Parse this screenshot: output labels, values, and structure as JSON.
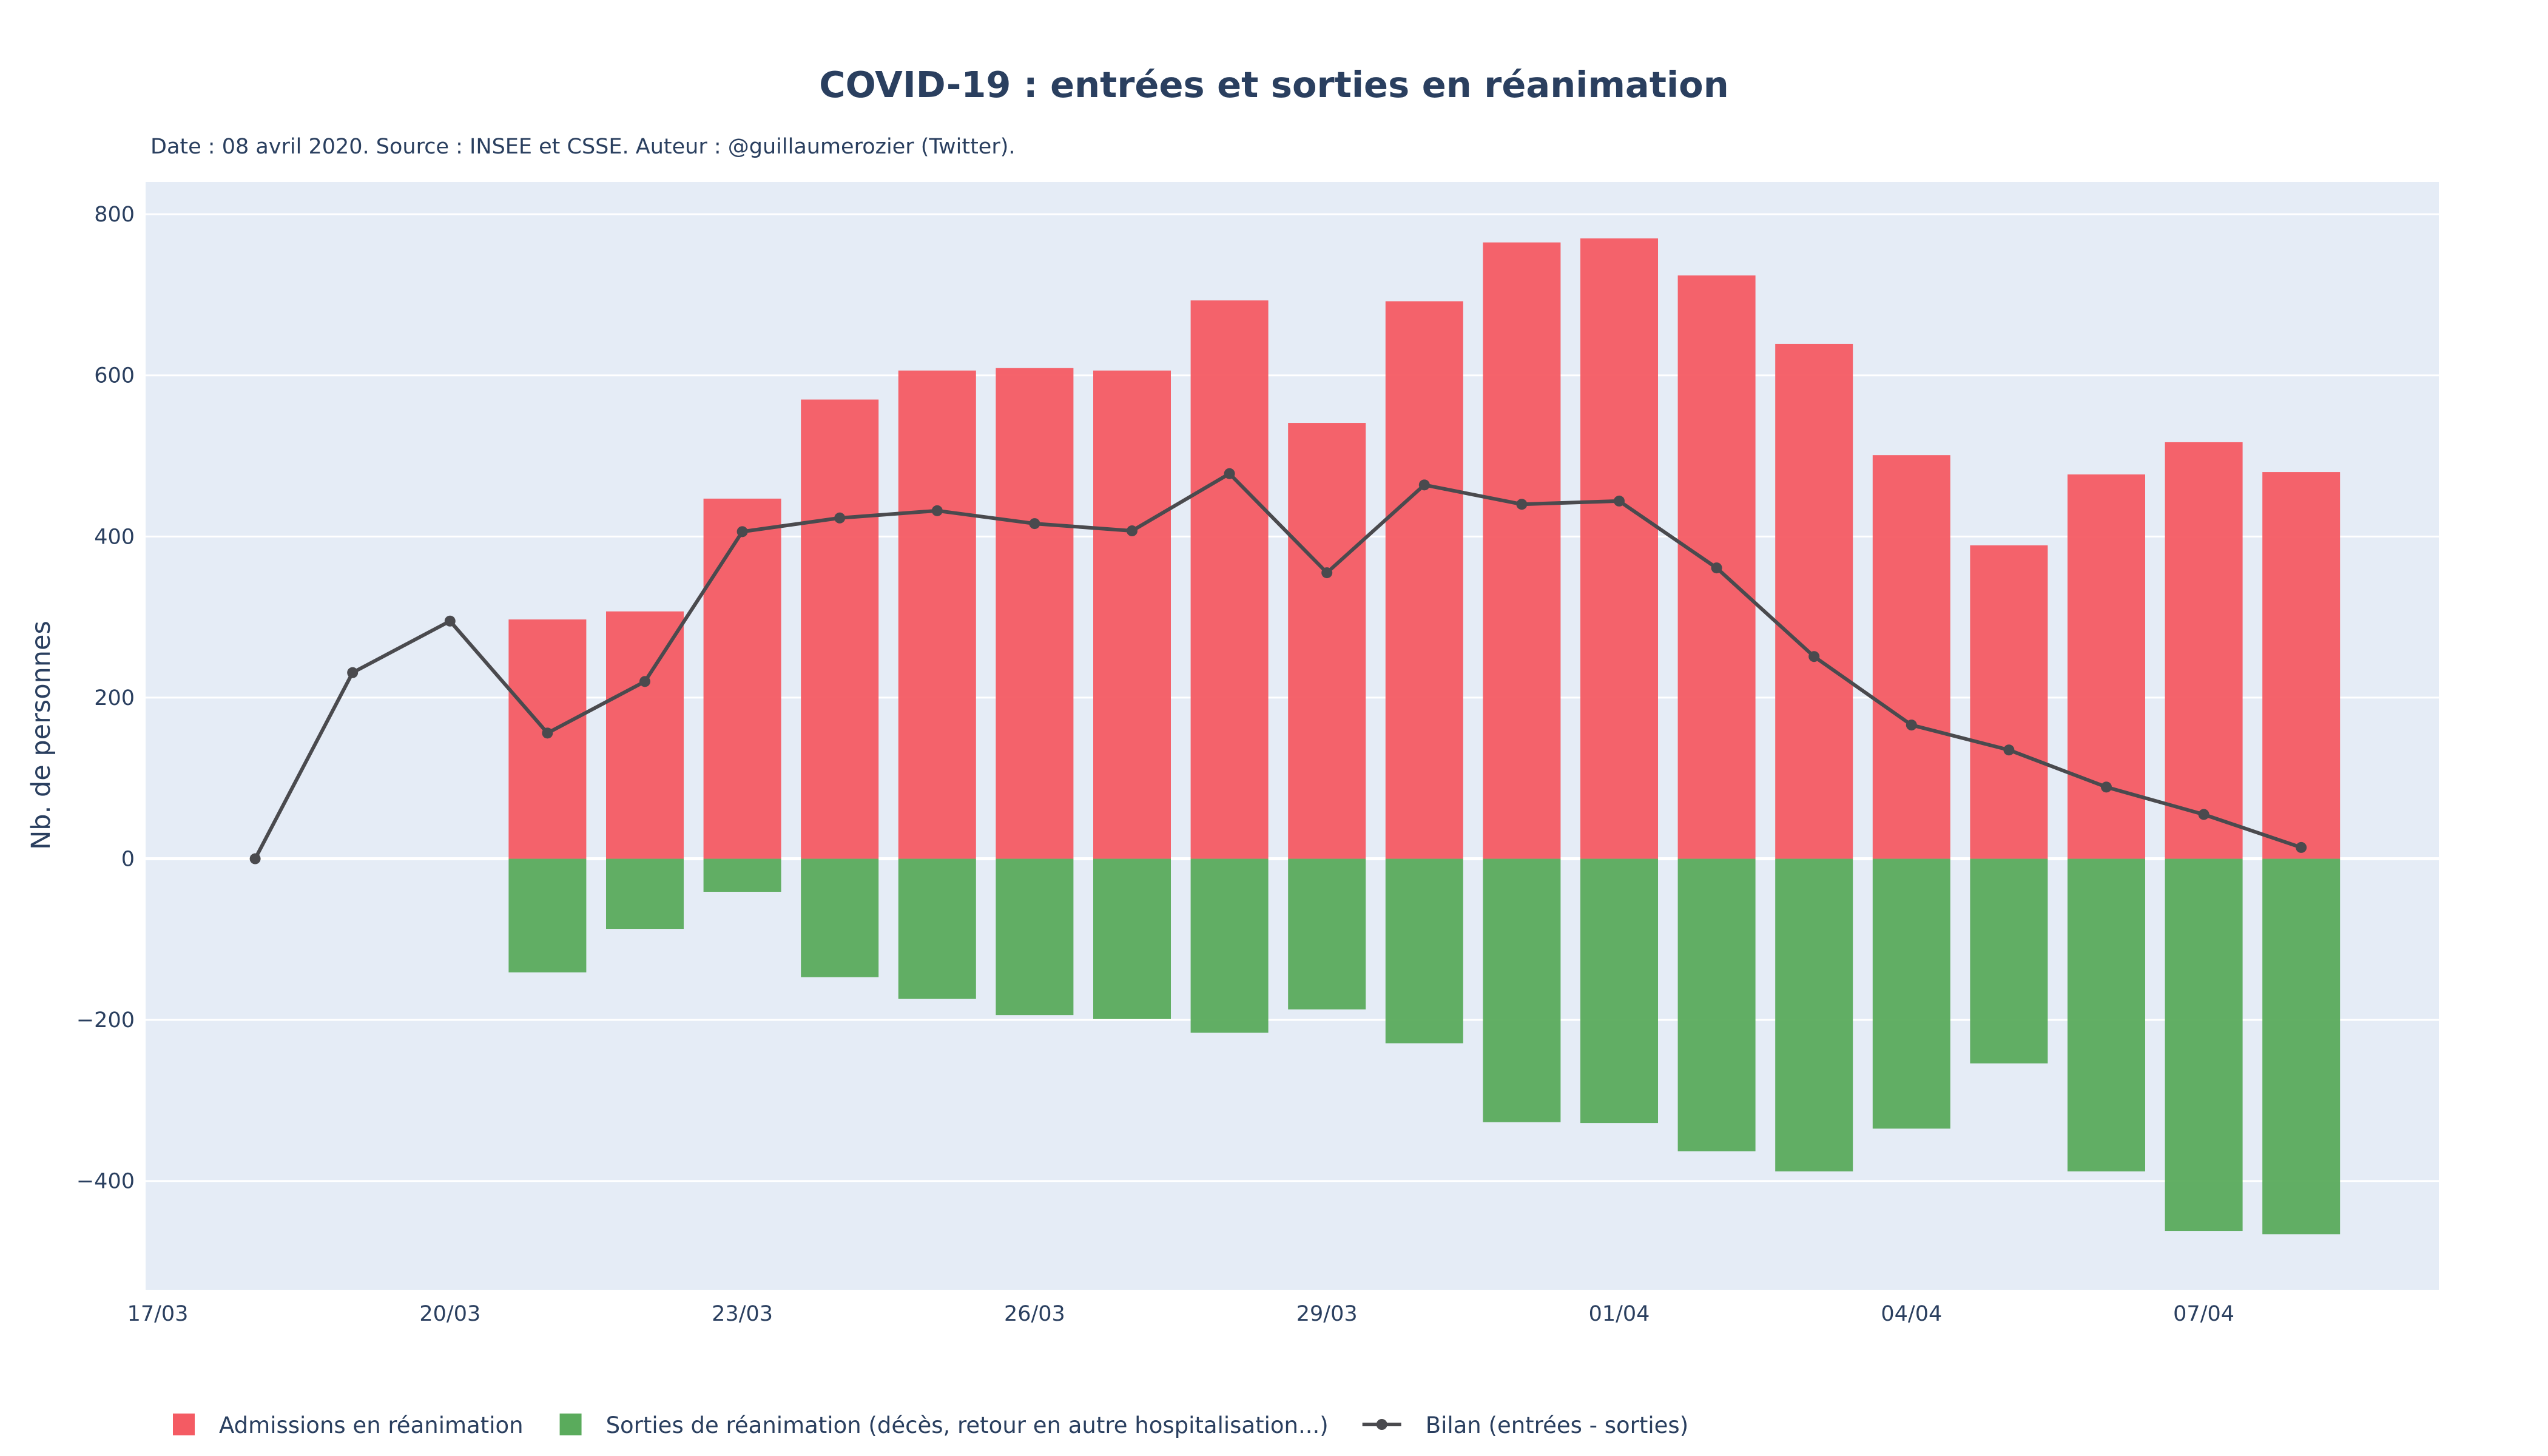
{
  "chart_data": {
    "type": "bar",
    "title": "COVID-19 : entrées et sorties en réanimation",
    "subtitle": "Date : 08 avril 2020. Source : INSEE et CSSE. Auteur : @guillaumerozier (Twitter).",
    "xlabel": "",
    "ylabel": "Nb. de personnes",
    "ylim": [
      -535,
      840
    ],
    "yticks": [
      800,
      600,
      400,
      200,
      0,
      -200,
      -400
    ],
    "ytick_labels": [
      "800",
      "600",
      "400",
      "200",
      "0",
      "−200",
      "−400"
    ],
    "xticks": [
      "17/03",
      "20/03",
      "23/03",
      "26/03",
      "29/03",
      "01/04",
      "04/04",
      "07/04"
    ],
    "grid": true,
    "barmode": "relative",
    "legend_position": "bottom-left",
    "background_color": "#e5ecf6",
    "categories": [
      "18/03",
      "19/03",
      "20/03",
      "21/03",
      "22/03",
      "23/03",
      "24/03",
      "25/03",
      "26/03",
      "27/03",
      "28/03",
      "29/03",
      "30/03",
      "31/03",
      "01/04",
      "02/04",
      "03/04",
      "04/04",
      "05/04",
      "06/04",
      "07/04",
      "08/04"
    ],
    "series": [
      {
        "name": "Admissions en réanimation",
        "kind": "bar",
        "color": "#f45b63",
        "values": [
          null,
          null,
          null,
          297,
          307,
          447,
          570,
          606,
          609,
          606,
          693,
          541,
          692,
          765,
          770,
          724,
          639,
          501,
          389,
          477,
          517,
          480
        ]
      },
      {
        "name": "Sorties de réanimation (décès, retour en autre hospitalisation...)",
        "kind": "bar",
        "color": "#5aab5c",
        "values": [
          null,
          null,
          null,
          -141,
          -87,
          -41,
          -147,
          -174,
          -194,
          -199,
          -216,
          -187,
          -229,
          -327,
          -328,
          -363,
          -388,
          -335,
          -254,
          -388,
          -462,
          -466
        ]
      },
      {
        "name": "Bilan (entrées - sorties)",
        "kind": "line",
        "color": "#4a4a4e",
        "values": [
          0,
          231,
          295,
          156,
          220,
          406,
          423,
          432,
          416,
          407,
          478,
          355,
          464,
          440,
          444,
          361,
          251,
          166,
          135,
          89,
          55,
          14
        ]
      }
    ]
  }
}
